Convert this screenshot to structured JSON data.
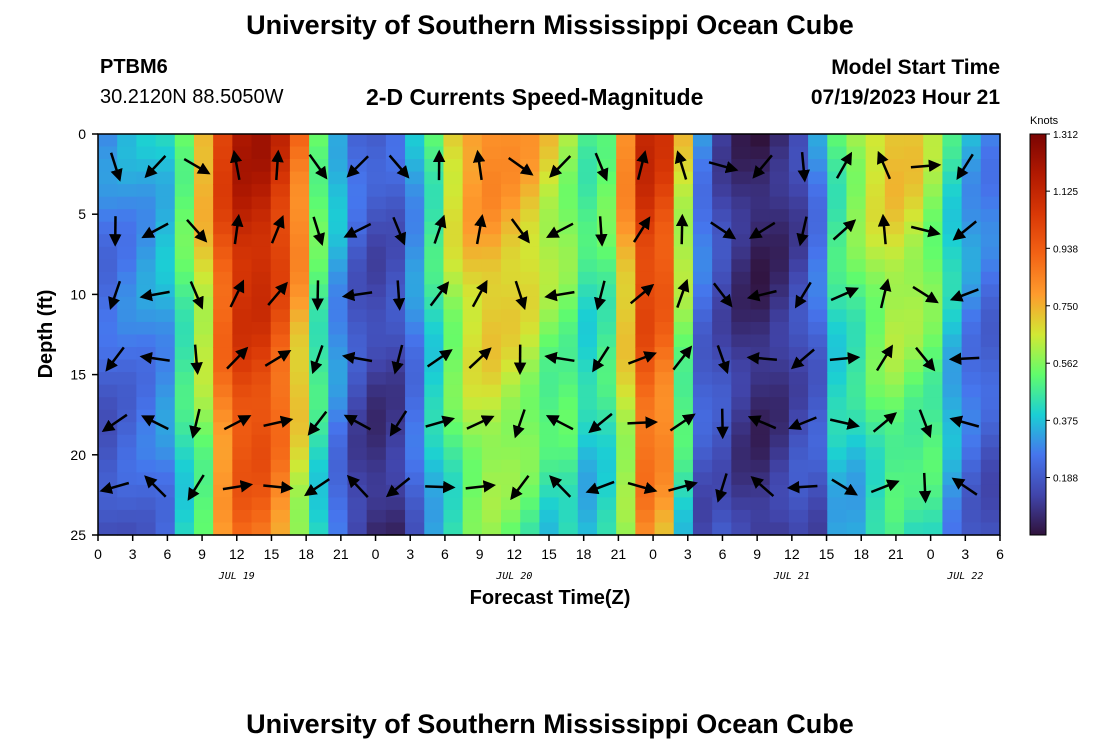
{
  "header": {
    "title": "University of Southern Mississippi Ocean Cube",
    "footer_title": "University of Southern Mississippi Ocean Cube",
    "station": "PTBM6",
    "coordinates": "30.2120N  88.5050W",
    "subtitle": "2-D Currents Speed-Magnitude",
    "model_start_label": "Model Start Time",
    "model_start_value": "07/19/2023 Hour 21"
  },
  "chart_data": {
    "type": "heatmap",
    "title": "2-D Currents Speed-Magnitude",
    "xlabel": "Forecast Time(Z)",
    "ylabel": "Depth (ft)",
    "x_hours_range": [
      0,
      78
    ],
    "ylim": [
      0,
      25
    ],
    "y_inverted": true,
    "x_tick_labels": [
      "0",
      "3",
      "6",
      "9",
      "12",
      "15",
      "18",
      "21",
      "0",
      "3",
      "6",
      "9",
      "12",
      "15",
      "18",
      "21",
      "0",
      "3",
      "6",
      "9",
      "12",
      "15",
      "18",
      "21",
      "0",
      "3",
      "6"
    ],
    "y_ticks": [
      0,
      5,
      10,
      15,
      20,
      25
    ],
    "date_labels": [
      {
        "label": "JUL 19",
        "hour": 12
      },
      {
        "label": "JUL 20",
        "hour": 36
      },
      {
        "label": "JUL 21",
        "hour": 60
      },
      {
        "label": "JUL 22",
        "hour": 75
      }
    ],
    "colorbar": {
      "unit": "Knots",
      "min": 0,
      "max": 1.312,
      "ticks": [
        "1.312",
        "1.125",
        "0.938",
        "0.750",
        "0.562",
        "0.375",
        "0.188"
      ]
    },
    "speed_profile_by_column": [
      0.3,
      0.33,
      0.36,
      0.4,
      0.55,
      0.78,
      1.05,
      1.2,
      1.2,
      1.1,
      0.9,
      0.55,
      0.38,
      0.25,
      0.2,
      0.22,
      0.35,
      0.5,
      0.72,
      0.82,
      0.85,
      0.82,
      0.78,
      0.7,
      0.6,
      0.5,
      0.55,
      0.85,
      1.12,
      1.05,
      0.7,
      0.3,
      0.15,
      0.08,
      0.05,
      0.08,
      0.14,
      0.3,
      0.5,
      0.62,
      0.7,
      0.75,
      0.72,
      0.6,
      0.45,
      0.35,
      0.3
    ],
    "vector_field_note": "Arrows show current direction at sampled depth/time points"
  }
}
